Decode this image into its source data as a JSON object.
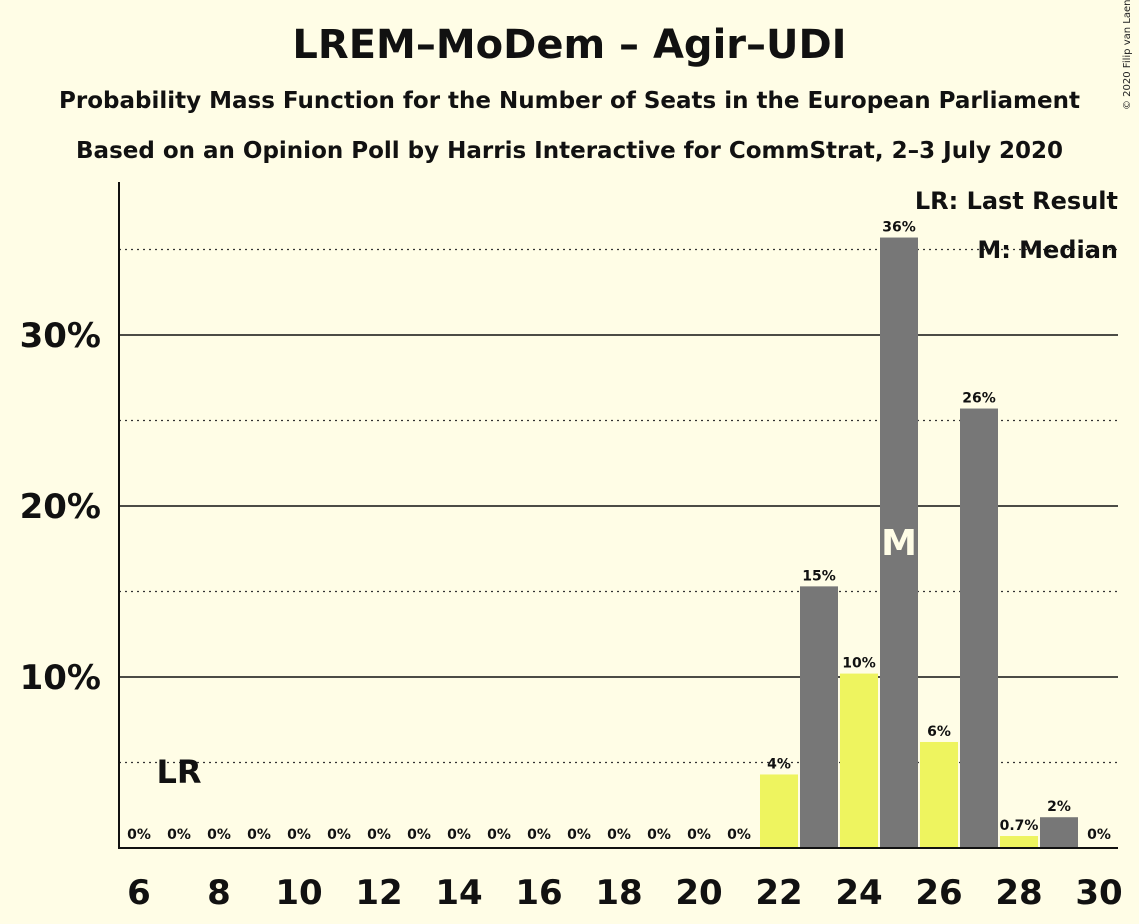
{
  "chart_data": {
    "type": "bar",
    "title": "LREM–MoDem – Agir–UDI",
    "subtitle_1": "Probability Mass Function for the Number of Seats in the European Parliament",
    "subtitle_2": "Based on an Opinion Poll by Harris Interactive for CommStrat, 2–3 July 2020",
    "copyright": "© 2020 Filip van Laenen",
    "legend": {
      "lr": "LR: Last Result",
      "m": "M: Median",
      "placement": "top-right"
    },
    "x": [
      6,
      7,
      8,
      9,
      10,
      11,
      12,
      13,
      14,
      15,
      16,
      17,
      18,
      19,
      20,
      21,
      22,
      23,
      24,
      25,
      26,
      27,
      28,
      29,
      30
    ],
    "values": [
      0,
      0,
      0,
      0,
      0,
      0,
      0,
      0,
      0,
      0,
      0,
      0,
      0,
      0,
      0,
      0,
      4.3,
      15.3,
      10.2,
      35.7,
      6.2,
      25.7,
      0.7,
      1.8,
      0
    ],
    "data_labels": [
      "0%",
      "0%",
      "0%",
      "0%",
      "0%",
      "0%",
      "0%",
      "0%",
      "0%",
      "0%",
      "0%",
      "0%",
      "0%",
      "0%",
      "0%",
      "0%",
      "4%",
      "15%",
      "10%",
      "36%",
      "6%",
      "26%",
      "0.7%",
      "2%",
      "0%"
    ],
    "xtick_labels": [
      "6",
      "8",
      "10",
      "12",
      "14",
      "16",
      "18",
      "20",
      "22",
      "24",
      "26",
      "28",
      "30"
    ],
    "ytick_labels": [
      "10%",
      "20%",
      "30%"
    ],
    "yticks": [
      10,
      20,
      30
    ],
    "minor_gridlines": [
      5,
      15,
      25,
      35
    ],
    "ylim": [
      0,
      39
    ],
    "last_result_seat": 7,
    "last_result_label": "LR",
    "median_seat": 25,
    "median_label": "M",
    "colors": {
      "background": "#FFFDE6",
      "bar_dark": "#777777",
      "bar_light": "#EEF45F"
    }
  }
}
